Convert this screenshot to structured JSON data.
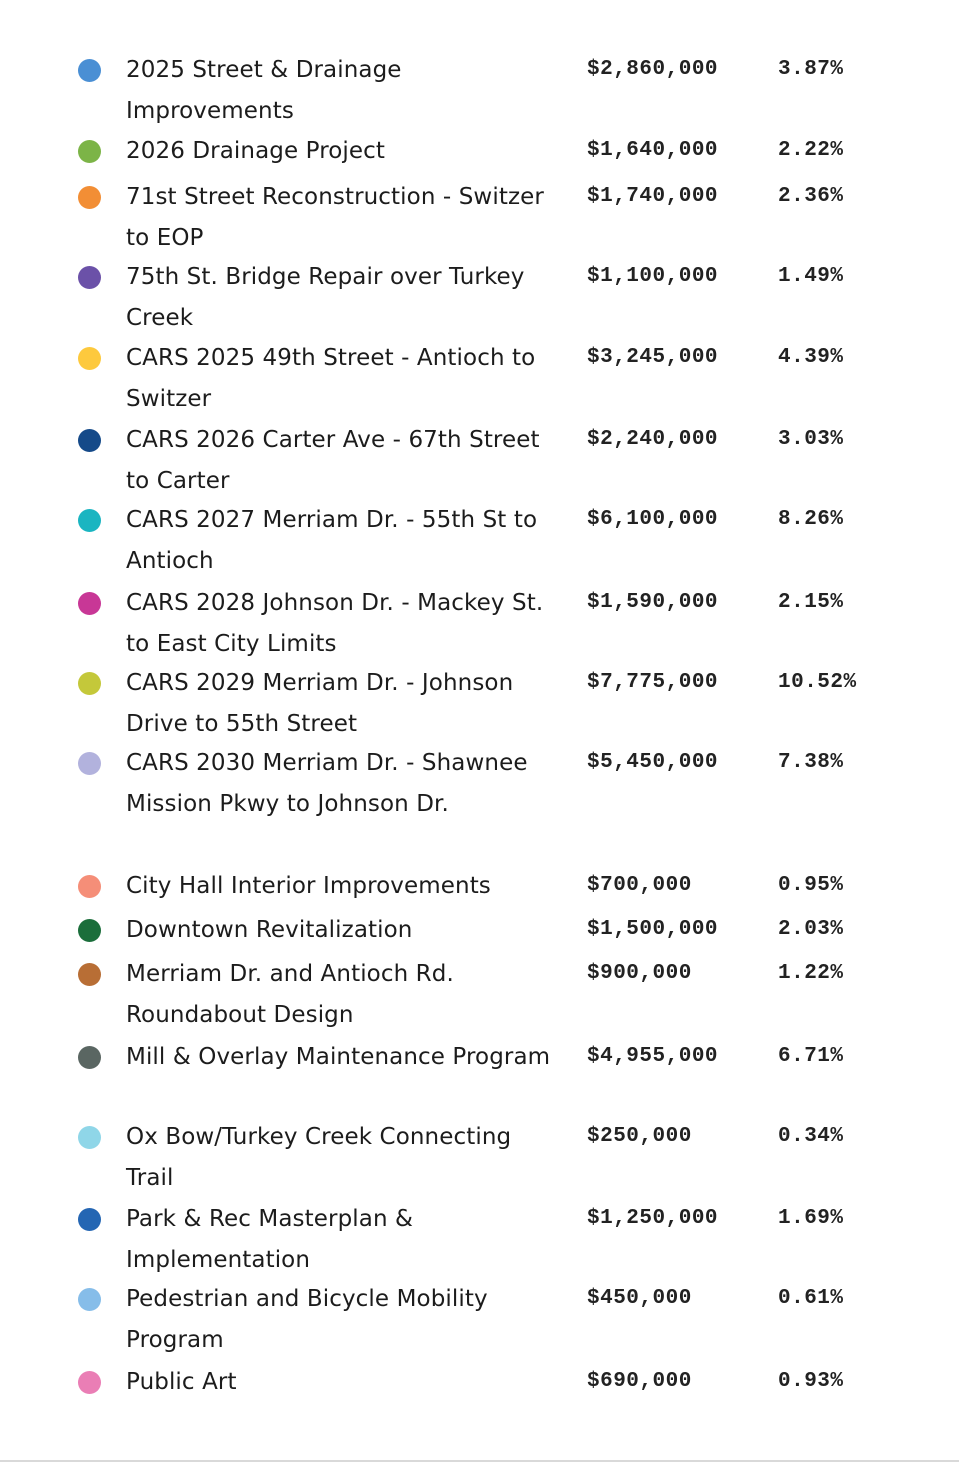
{
  "legend": {
    "items": [
      {
        "name": "2025 Street & Drainage Improvements",
        "amount": "$2,860,000",
        "percent": "3.87%",
        "color": "#4a8fd4"
      },
      {
        "name": "2026 Drainage Project",
        "amount": "$1,640,000",
        "percent": "2.22%",
        "color": "#7cb447"
      },
      {
        "name": "71st Street Reconstruction - Switzer to EOP",
        "amount": "$1,740,000",
        "percent": "2.36%",
        "color": "#f28e35"
      },
      {
        "name": "75th St. Bridge Repair over Turkey Creek",
        "amount": "$1,100,000",
        "percent": "1.49%",
        "color": "#6b51a8"
      },
      {
        "name": "CARS 2025 49th Street - Antioch to Switzer",
        "amount": "$3,245,000",
        "percent": "4.39%",
        "color": "#fdc93d"
      },
      {
        "name": "CARS 2026 Carter Ave - 67th Street to Carter",
        "amount": "$2,240,000",
        "percent": "3.03%",
        "color": "#154a89"
      },
      {
        "name": "CARS 2027 Merriam Dr. - 55th St to Antioch",
        "amount": "$6,100,000",
        "percent": "8.26%",
        "color": "#1ab5c1"
      },
      {
        "name": "CARS 2028 Johnson Dr. - Mackey St. to East City Limits",
        "amount": "$1,590,000",
        "percent": "2.15%",
        "color": "#c83796"
      },
      {
        "name": "CARS 2029 Merriam Dr. - Johnson Drive to 55th Street",
        "amount": "$7,775,000",
        "percent": "10.52%",
        "color": "#c4c83a"
      },
      {
        "name": "CARS 2030 Merriam Dr. - Shawnee Mission Pkwy to Johnson Dr.",
        "amount": "$5,450,000",
        "percent": "7.38%",
        "color": "#b2b2dd"
      },
      {
        "name": "City Hall Interior Improvements",
        "amount": "$700,000",
        "percent": "0.95%",
        "color": "#f58e78"
      },
      {
        "name": "Downtown Revitalization",
        "amount": "$1,500,000",
        "percent": "2.03%",
        "color": "#1b6e3b"
      },
      {
        "name": "Merriam Dr. and Antioch Rd. Roundabout Design",
        "amount": "$900,000",
        "percent": "1.22%",
        "color": "#b86e35"
      },
      {
        "name": "Mill & Overlay Maintenance Program",
        "amount": "$4,955,000",
        "percent": "6.71%",
        "color": "#5a6662"
      },
      {
        "name": "Ox Bow/Turkey Creek Connecting Trail",
        "amount": "$250,000",
        "percent": "0.34%",
        "color": "#8fd6e8"
      },
      {
        "name": "Park & Rec Masterplan & Implementation",
        "amount": "$1,250,000",
        "percent": "1.69%",
        "color": "#2466b3"
      },
      {
        "name": "Pedestrian and Bicycle Mobility Program",
        "amount": "$450,000",
        "percent": "0.61%",
        "color": "#86bde9"
      },
      {
        "name": "Public Art",
        "amount": "$690,000",
        "percent": "0.93%",
        "color": "#ea7eb5"
      }
    ]
  }
}
